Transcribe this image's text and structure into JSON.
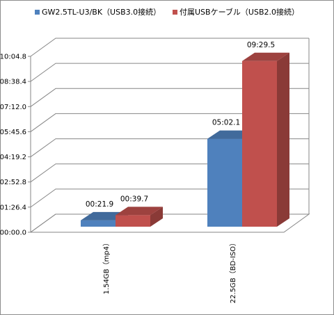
{
  "chart_data": {
    "type": "bar",
    "style": "3d-clustered-column",
    "categories": [
      "1.54GB（mp4）",
      "22.5GB（BD-ISO）"
    ],
    "series": [
      {
        "name": "GW2.5TL-U3/BK（USB3.0接続）",
        "color": "#4f81bd",
        "values_seconds": [
          21.9,
          302.1
        ],
        "data_labels": [
          "00:21.9",
          "05:02.1"
        ]
      },
      {
        "name": "付属USBケーブル（USB2.0接続）",
        "color": "#c0504d",
        "values_seconds": [
          39.7,
          569.5
        ],
        "data_labels": [
          "00:39.7",
          "09:29.5"
        ]
      }
    ],
    "y_ticks": [
      "00:00.0",
      "01:26.4",
      "02:52.8",
      "04:19.2",
      "05:45.6",
      "07:12.0",
      "08:38.4",
      "10:04.8"
    ],
    "y_tick_values_seconds": [
      0,
      86.4,
      172.8,
      259.2,
      345.6,
      432.0,
      518.4,
      604.8
    ],
    "ylim_seconds": [
      0,
      604.8
    ],
    "grid": true,
    "legend_position": "top",
    "xlabel": "",
    "ylabel": "",
    "title": ""
  }
}
